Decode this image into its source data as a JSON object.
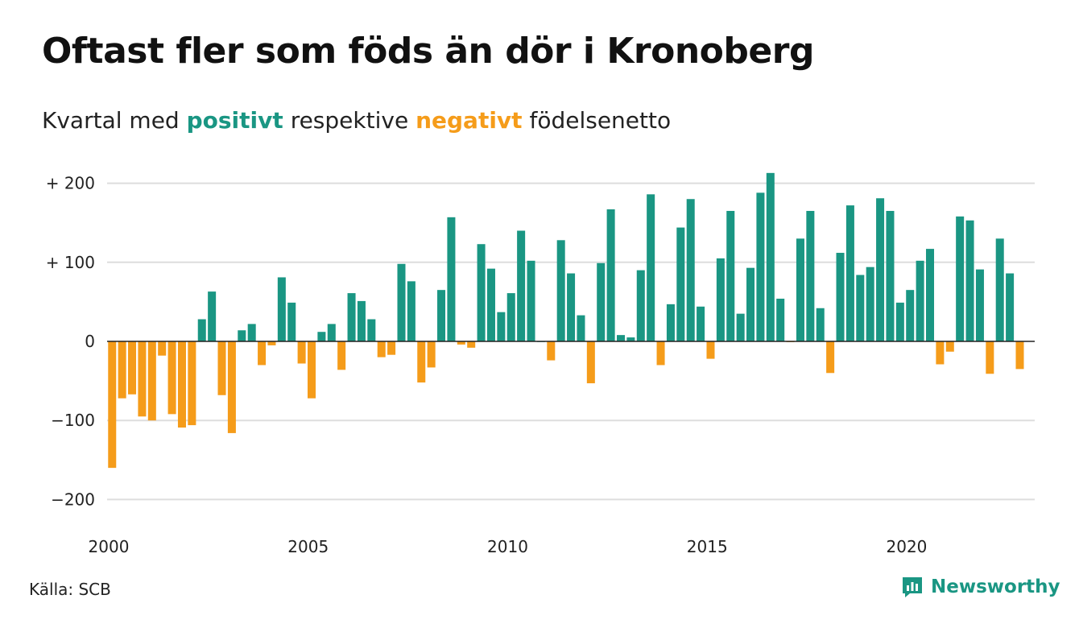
{
  "header": {
    "title": "Oftast fler som föds än dör i Kronoberg",
    "subtitle_pre": "Kvartal med",
    "subtitle_pos": "positivt",
    "subtitle_mid": "respektive",
    "subtitle_neg": "negativt",
    "subtitle_post": "födelsenetto"
  },
  "colors": {
    "positive": "#1a9683",
    "negative": "#f59c1a",
    "grid": "#dddddd",
    "axis": "#222222"
  },
  "footer": {
    "source": "Källa: SCB",
    "brand": "Newsworthy",
    "brand_icon": "newsworthy-logo-icon"
  },
  "chart_data": {
    "type": "bar",
    "title": "Oftast fler som föds än dör i Kronoberg",
    "subtitle": "Kvartal med positivt respektive negativt födelsenetto",
    "xlabel": "",
    "ylabel": "",
    "ylim": [
      -220,
      220
    ],
    "xlim": [
      2000,
      2023.25
    ],
    "y_ticks": [
      200,
      100,
      0,
      -100,
      -200
    ],
    "y_tick_labels": [
      "+ 200",
      "+ 100",
      "0",
      "−100",
      "−200"
    ],
    "x_ticks": [
      2000,
      2005,
      2010,
      2015,
      2020
    ],
    "x_tick_labels": [
      "2000",
      "2005",
      "2010",
      "2015",
      "2020"
    ],
    "grid": true,
    "series": [
      {
        "start_year": 2000,
        "step": 0.25,
        "values": [
          -160,
          -72,
          -67,
          -95,
          -100,
          -18,
          -92,
          -109,
          -106,
          28,
          63,
          -68,
          -116,
          14,
          22,
          -30,
          -5,
          81,
          49,
          -28,
          -72,
          12,
          22,
          -36,
          61,
          51,
          28,
          -20,
          -17,
          98,
          76,
          -52,
          -33,
          65,
          157,
          -4,
          -8,
          123,
          92,
          37,
          61,
          140,
          102,
          0,
          -24,
          128,
          86,
          33,
          -53,
          99,
          167,
          8,
          5,
          90,
          186,
          -30,
          47,
          144,
          180,
          44,
          -22,
          105,
          165,
          35,
          93,
          188,
          213,
          54,
          -1,
          130,
          165,
          42,
          -40,
          112,
          172,
          84,
          94,
          181,
          165,
          49,
          65,
          102,
          117,
          -29,
          -13,
          158,
          153,
          91,
          -41,
          130,
          86,
          -35
        ]
      }
    ]
  }
}
